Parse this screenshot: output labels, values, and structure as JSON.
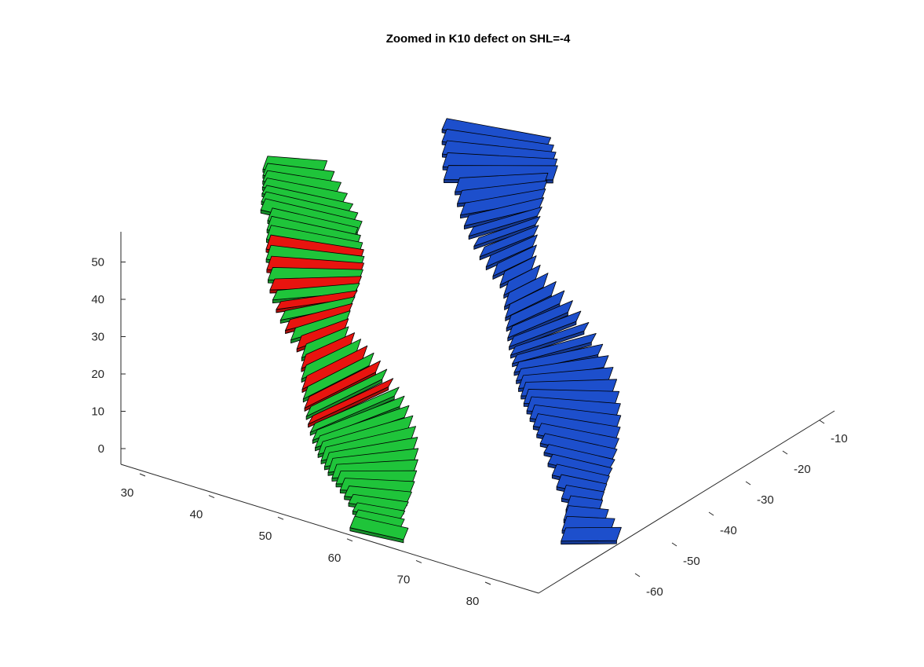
{
  "chart_data": {
    "type": "3d-surface",
    "title": "Zoomed in K10 defect on SHL=-4",
    "xlabel": "",
    "ylabel": "",
    "zlabel": "",
    "x_axis": {
      "ticks": [
        30,
        40,
        50,
        60,
        70,
        80
      ]
    },
    "y_axis": {
      "ticks": [
        -10,
        -20,
        -30,
        -40,
        -50,
        -60
      ]
    },
    "z_axis": {
      "ticks": [
        0,
        10,
        20,
        30,
        40,
        50
      ]
    },
    "grid": false,
    "colors": {
      "strand_a": "#1fc43a",
      "strand_b": "#1d4fcc",
      "defect": "#e8140f"
    },
    "series": [
      {
        "color_key": "strand_a",
        "z_range": [
          -3,
          58
        ],
        "x_range": [
          28,
          72
        ]
      },
      {
        "color_key": "strand_b",
        "z_range": [
          -3,
          62
        ],
        "x_range": [
          40,
          78
        ]
      },
      {
        "color_key": "defect",
        "z_range": [
          14,
          50
        ]
      }
    ]
  }
}
